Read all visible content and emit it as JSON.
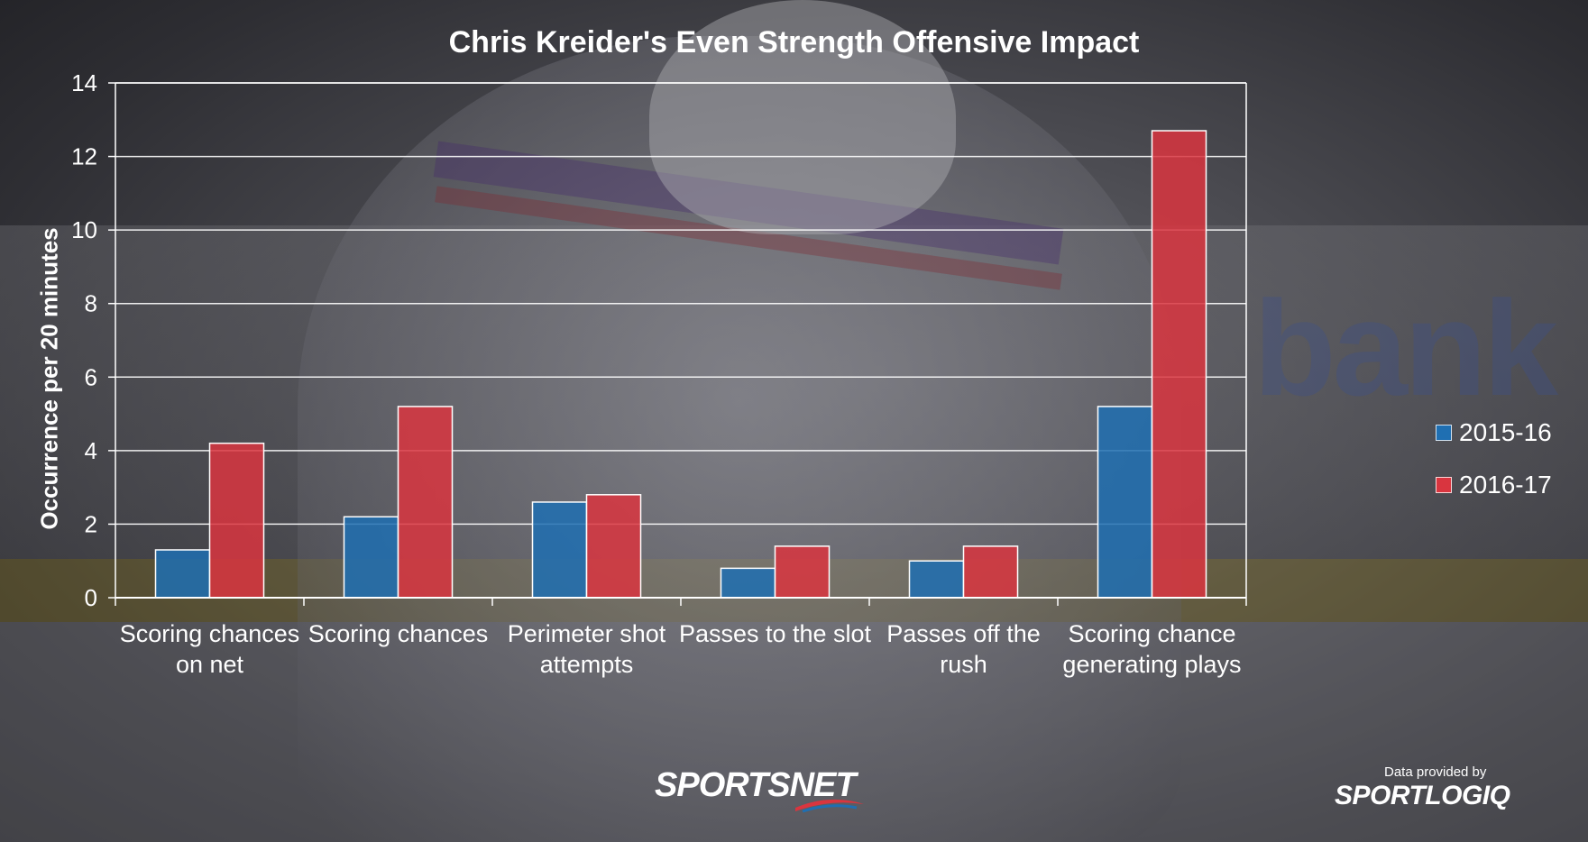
{
  "credits": {
    "sportsnet_logo": "SPORTSNET",
    "data_provided_by": "Data provided by",
    "sportlogiq_logo": "SPORTLOGIQ"
  },
  "colors": {
    "series_2015_16": "#1f6fb2",
    "series_2016_17": "#d9353f",
    "gridline": "#ffffff",
    "text": "#ffffff"
  },
  "chart_data": {
    "type": "bar",
    "title": "Chris Kreider's Even Strength Offensive Impact",
    "xlabel": "",
    "ylabel": "Occurrence per 20 minutes",
    "ylim": [
      0,
      14
    ],
    "yticks": [
      0,
      2,
      4,
      6,
      8,
      10,
      12,
      14
    ],
    "grid": true,
    "legend_position": "right",
    "categories": [
      [
        "Scoring chances",
        "on net"
      ],
      [
        "Scoring chances"
      ],
      [
        "Perimeter shot",
        "attempts"
      ],
      [
        "Passes to the slot"
      ],
      [
        "Passes off the",
        "rush"
      ],
      [
        "Scoring chance",
        "generating plays"
      ]
    ],
    "series": [
      {
        "name": "2015-16",
        "color": "#1f6fb2",
        "values": [
          1.3,
          2.2,
          2.6,
          0.8,
          1.0,
          5.2
        ]
      },
      {
        "name": "2016-17",
        "color": "#d9353f",
        "values": [
          4.2,
          5.2,
          2.8,
          1.4,
          1.4,
          12.7
        ]
      }
    ]
  }
}
